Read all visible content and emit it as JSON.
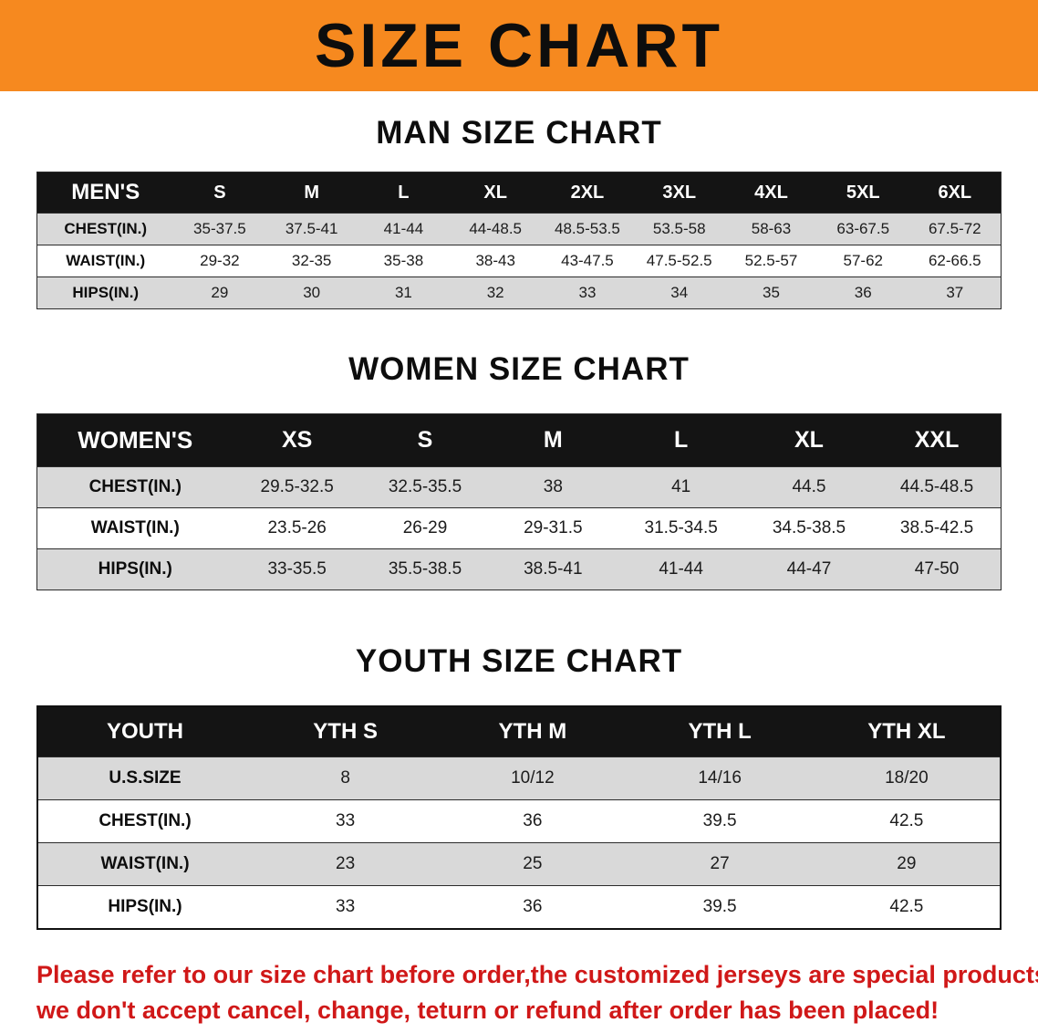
{
  "banner": {
    "title": "SIZE CHART",
    "bg_color": "#f6891f",
    "text_color": "#0d0d0d"
  },
  "men": {
    "heading": "MAN SIZE CHART",
    "table": {
      "header": [
        "MEN'S",
        "S",
        "M",
        "L",
        "XL",
        "2XL",
        "3XL",
        "4XL",
        "5XL",
        "6XL"
      ],
      "rows": [
        [
          "CHEST(IN.)",
          "35-37.5",
          "37.5-41",
          "41-44",
          "44-48.5",
          "48.5-53.5",
          "53.5-58",
          "58-63",
          "63-67.5",
          "67.5-72"
        ],
        [
          "WAIST(IN.)",
          "29-32",
          "32-35",
          "35-38",
          "38-43",
          "43-47.5",
          "47.5-52.5",
          "52.5-57",
          "57-62",
          "62-66.5"
        ],
        [
          "HIPS(IN.)",
          "29",
          "30",
          "31",
          "32",
          "33",
          "34",
          "35",
          "36",
          "37"
        ]
      ]
    }
  },
  "women": {
    "heading": "WOMEN SIZE CHART",
    "table": {
      "header": [
        "WOMEN'S",
        "XS",
        "S",
        "M",
        "L",
        "XL",
        "XXL"
      ],
      "rows": [
        [
          "CHEST(IN.)",
          "29.5-32.5",
          "32.5-35.5",
          "38",
          "41",
          "44.5",
          "44.5-48.5"
        ],
        [
          "WAIST(IN.)",
          "23.5-26",
          "26-29",
          "29-31.5",
          "31.5-34.5",
          "34.5-38.5",
          "38.5-42.5"
        ],
        [
          "HIPS(IN.)",
          "33-35.5",
          "35.5-38.5",
          "38.5-41",
          "41-44",
          "44-47",
          "47-50"
        ]
      ]
    }
  },
  "youth": {
    "heading": "YOUTH SIZE CHART",
    "table": {
      "header": [
        "YOUTH",
        "YTH S",
        "YTH M",
        "YTH L",
        "YTH XL"
      ],
      "rows": [
        [
          "U.S.SIZE",
          "8",
          "10/12",
          "14/16",
          "18/20"
        ],
        [
          "CHEST(IN.)",
          "33",
          "36",
          "39.5",
          "42.5"
        ],
        [
          "WAIST(IN.)",
          "23",
          "25",
          "27",
          "29"
        ],
        [
          "HIPS(IN.)",
          "33",
          "36",
          "39.5",
          "42.5"
        ]
      ]
    }
  },
  "disclaimer": {
    "line1": "Please refer to our size chart before order,the customized jerseys are special products,",
    "line2": "we don't accept cancel, change, teturn or refund after order has been placed!",
    "color": "#d01818"
  }
}
